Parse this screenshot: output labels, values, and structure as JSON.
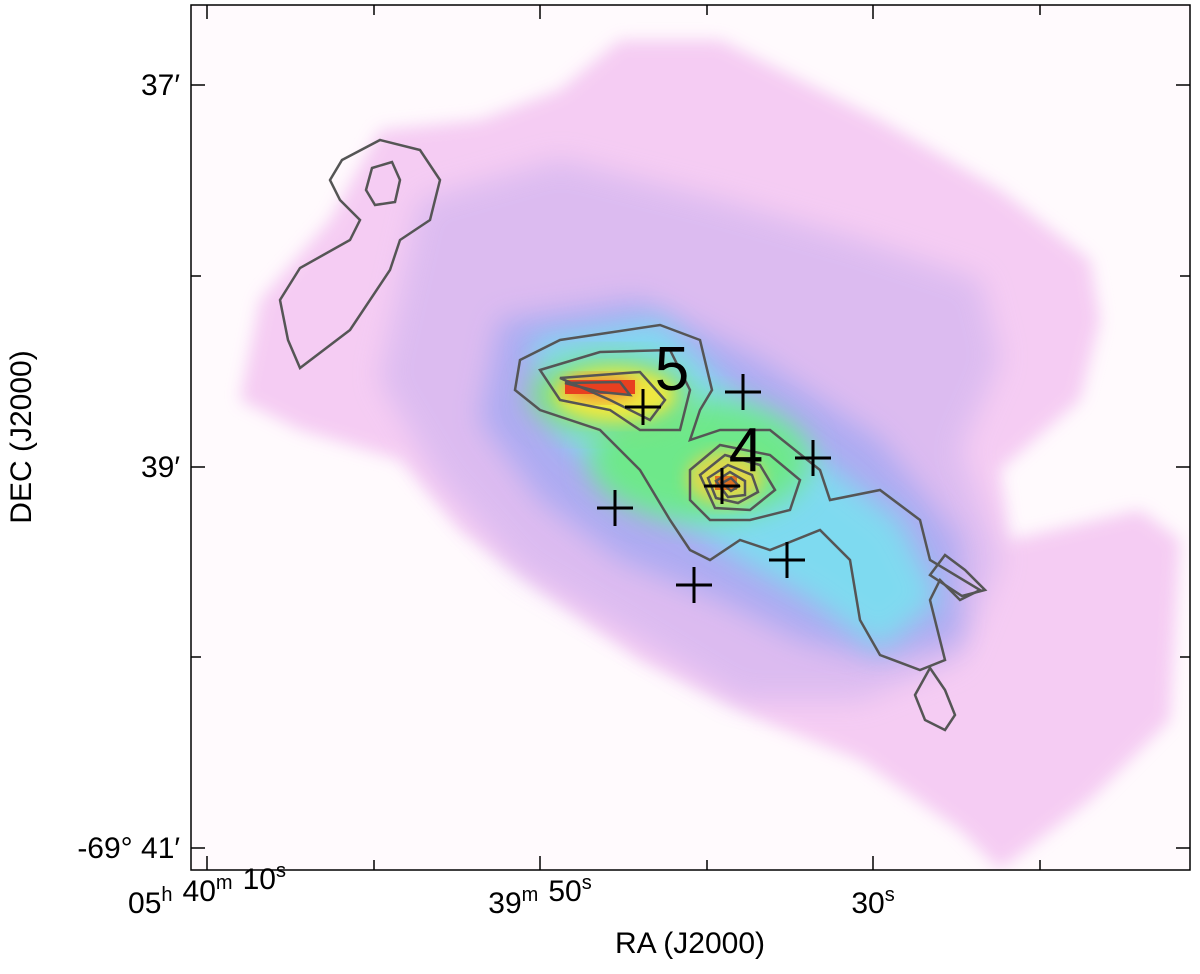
{
  "axes": {
    "x": {
      "label": "RA (J2000)",
      "ticks": [
        [
          {
            "text": "05",
            "sup": "h"
          },
          {
            "text": "40",
            "sup": "m"
          },
          {
            "text": "10",
            "sup": "s"
          }
        ],
        [
          {
            "text": "39",
            "sup": "m"
          },
          {
            "text": "50",
            "sup": "s"
          }
        ],
        [
          {
            "text": "30",
            "sup": "s"
          }
        ]
      ]
    },
    "y": {
      "label": "DEC (J2000)",
      "ticks": [
        "37′",
        "39′",
        "-69° 41′"
      ]
    }
  },
  "annotations": [
    "5",
    "4"
  ]
}
